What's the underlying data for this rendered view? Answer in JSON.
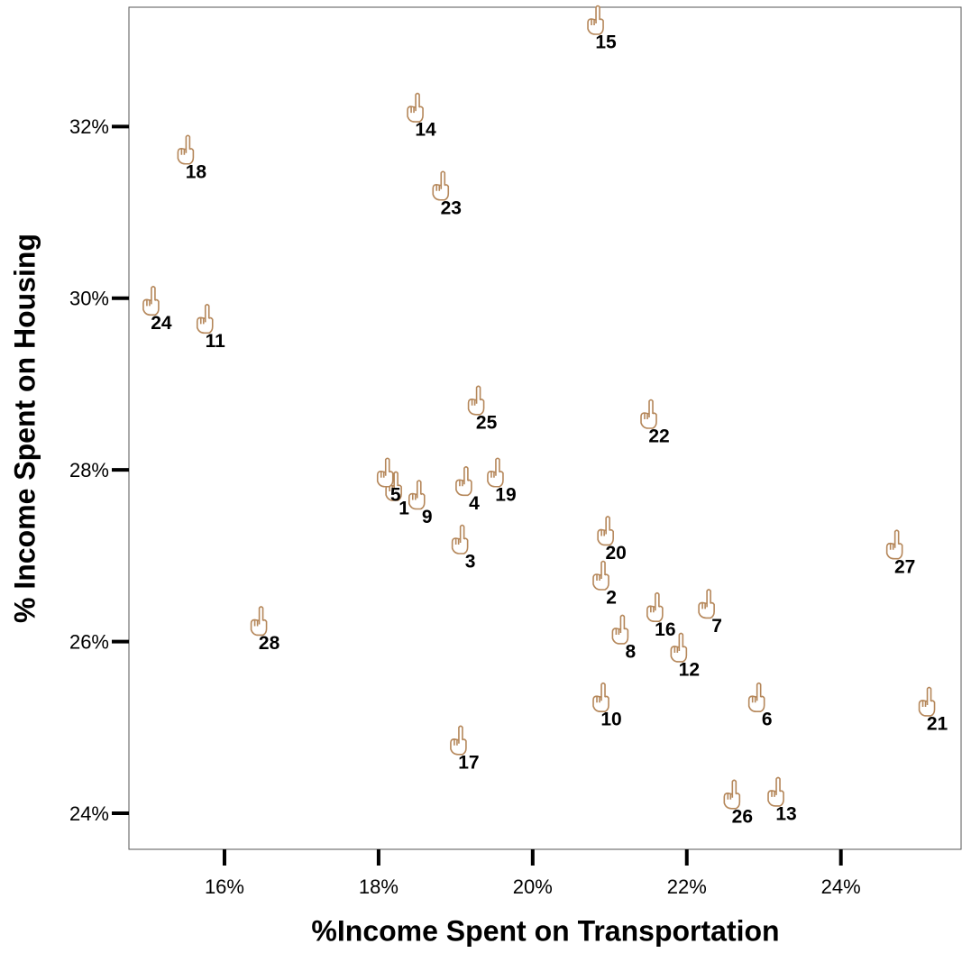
{
  "chart_data": {
    "type": "scatter",
    "x_label": "%Income Spent on Transportation",
    "y_label": "% Income Spent on Housing",
    "series": [
      {
        "color": "#b5875a",
        "labels": [
          "1",
          "2",
          "3",
          "4",
          "5",
          "6",
          "7",
          "8",
          "9",
          "10",
          "11",
          "12",
          "13",
          "14",
          "15",
          "16",
          "17",
          "18",
          "19",
          "20",
          "21",
          "22",
          "23",
          "24",
          "25",
          "26",
          "27",
          "28"
        ],
        "x": [
          18.19,
          20.88,
          19.05,
          19.1,
          18.08,
          22.9,
          22.25,
          21.13,
          18.49,
          20.88,
          15.74,
          21.89,
          23.15,
          18.47,
          20.81,
          21.58,
          19.03,
          15.49,
          19.51,
          20.94,
          25.11,
          21.5,
          18.8,
          15.04,
          19.26,
          22.58,
          24.69,
          16.44
        ],
        "y": [
          27.75,
          26.71,
          27.13,
          27.81,
          27.91,
          25.29,
          26.38,
          26.08,
          27.65,
          25.29,
          29.7,
          25.87,
          24.19,
          32.16,
          33.18,
          26.34,
          24.79,
          31.67,
          27.91,
          27.23,
          25.24,
          28.59,
          31.25,
          29.91,
          28.75,
          24.16,
          27.07,
          26.18
        ]
      }
    ],
    "xlim": [
      14.76,
      25.56
    ],
    "ylim": [
      23.58,
      33.39
    ],
    "xticks": [
      {
        "value": 16,
        "label": "16%"
      },
      {
        "value": 18,
        "label": "18%"
      },
      {
        "value": 20,
        "label": "20%"
      },
      {
        "value": 22,
        "label": "22%"
      },
      {
        "value": 24,
        "label": "24%"
      }
    ],
    "yticks": [
      {
        "value": 24,
        "label": "24%"
      },
      {
        "value": 26,
        "label": "26%"
      },
      {
        "value": 28,
        "label": "28%"
      },
      {
        "value": 30,
        "label": "30%"
      },
      {
        "value": 32,
        "label": "32%"
      }
    ]
  }
}
